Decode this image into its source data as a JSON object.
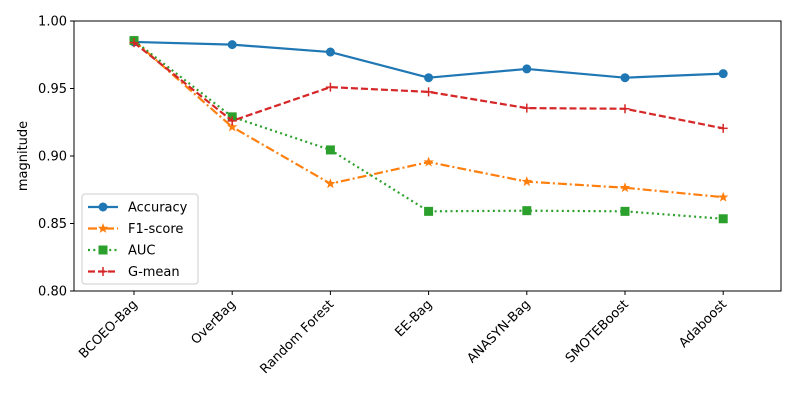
{
  "chart_data": {
    "type": "line",
    "title": "",
    "xlabel": "",
    "ylabel": "magnitude",
    "ylim": [
      0.8,
      1.0
    ],
    "yticks": [
      "0.80",
      "0.85",
      "0.90",
      "0.95",
      "1.00"
    ],
    "categories": [
      "BCOEO-Bag",
      "OverBag",
      "Random Forest",
      "EE-Bag",
      "ANASYN-Bag",
      "SMOTEBoost",
      "Adaboost"
    ],
    "grid": false,
    "legend_position": "lower-left",
    "series": [
      {
        "name": "Accuracy",
        "color": "#1f77b4",
        "marker": "circle",
        "dash": "solid",
        "values": [
          0.9845,
          0.9825,
          0.977,
          0.958,
          0.9645,
          0.958,
          0.961
        ]
      },
      {
        "name": "F1-score",
        "color": "#ff7f0e",
        "marker": "star",
        "dash": "dashdot",
        "values": [
          0.9855,
          0.9215,
          0.8795,
          0.8955,
          0.881,
          0.8765,
          0.8695
        ]
      },
      {
        "name": "AUC",
        "color": "#2ca02c",
        "marker": "square",
        "dash": "dotted",
        "values": [
          0.9855,
          0.929,
          0.9045,
          0.859,
          0.8595,
          0.859,
          0.8535
        ]
      },
      {
        "name": "G-mean",
        "color": "#d62728",
        "marker": "plus",
        "dash": "dashed",
        "values": [
          0.984,
          0.926,
          0.951,
          0.9475,
          0.9355,
          0.935,
          0.9205
        ]
      }
    ]
  }
}
